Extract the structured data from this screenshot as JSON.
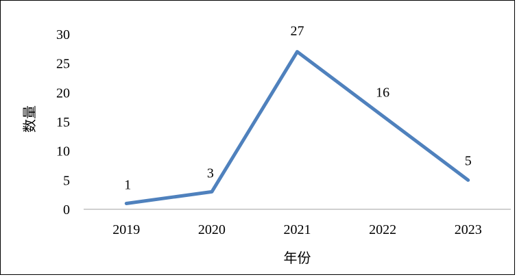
{
  "chart_data": {
    "type": "line",
    "title": "",
    "xlabel": "年份",
    "ylabel": "数量",
    "categories": [
      "2019",
      "2020",
      "2021",
      "2022",
      "2023"
    ],
    "series": [
      {
        "values": [
          1,
          3,
          27,
          16,
          5
        ]
      }
    ],
    "ylim": [
      0,
      30
    ],
    "yticks": [
      0,
      5,
      10,
      15,
      20,
      25,
      30
    ],
    "data_labels": [
      "1",
      "3",
      "27",
      "16",
      "5"
    ],
    "grid": false,
    "legend": "none",
    "colors": {
      "line": "#4f81bd",
      "axis": "#bfbfbf",
      "text": "#000000"
    }
  }
}
